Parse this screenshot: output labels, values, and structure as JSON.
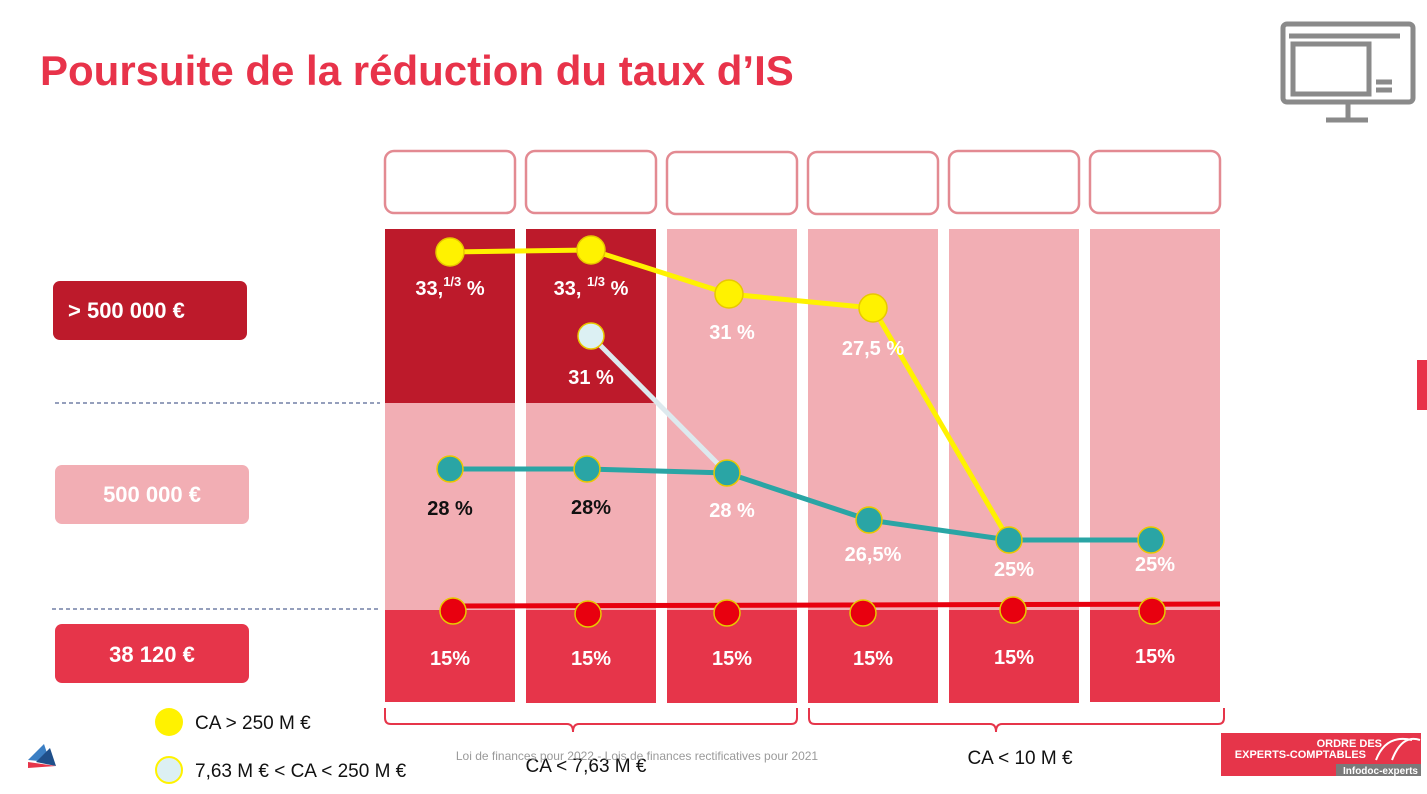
{
  "header": {
    "title": "Poursuite de la réduction du taux d’IS"
  },
  "thresholds": [
    "> 500 000 €",
    "500 000 €",
    "38 120 €"
  ],
  "columns": [
    {
      "top": {
        "main": "33,",
        "sup": "1/3",
        "unit": " %"
      },
      "middle": "28 %",
      "bottom": "15%"
    },
    {
      "top": {
        "main": "33, ",
        "sup": "1/3",
        "unit": " %"
      },
      "mid": "31 %",
      "middle": "28%",
      "bottom": "15%"
    },
    {
      "top": "31 %",
      "middle": "28 %",
      "bottom": "15%"
    },
    {
      "top": "27,5 %",
      "middle": "26,5%",
      "bottom": "15%"
    },
    {
      "middle": "25%",
      "bottom": "15%"
    },
    {
      "middle": "25%",
      "bottom": "15%"
    }
  ],
  "legend": [
    "CA > 250 M €",
    "7,63 M € < CA < 250 M €"
  ],
  "braces": [
    "CA < 7,63 M €",
    "CA < 10 M €"
  ],
  "footer": {
    "source": "Loi de finances pour 2022 - Lois de finances rectificatives pour 2021"
  },
  "logo": {
    "line1": "ORDRE DES",
    "line2": "EXPERTS-COMPTABLES",
    "line3": "Infodoc-experts"
  }
}
